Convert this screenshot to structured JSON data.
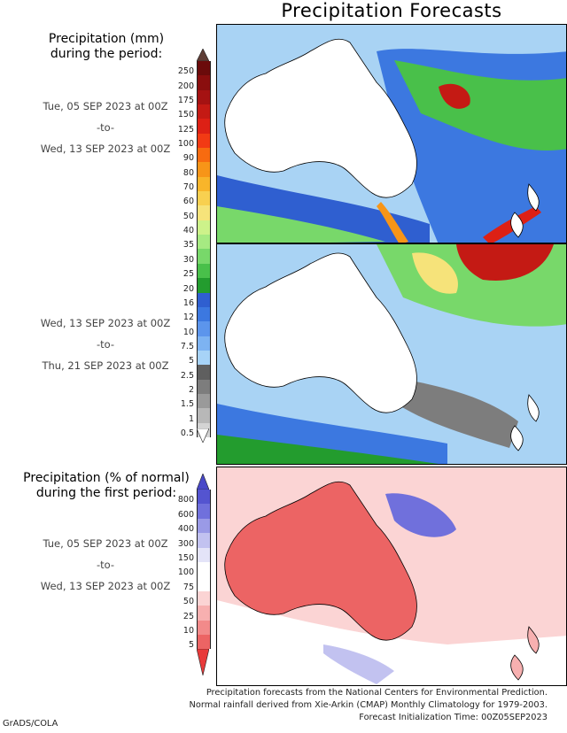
{
  "title": "Precipitation Forecasts",
  "amount_heading": [
    "Precipitation (mm)",
    "during the period:"
  ],
  "percent_heading": [
    "Precipitation (% of normal)",
    "during the first period:"
  ],
  "periods": [
    {
      "start": "Tue, 05 SEP 2023 at 00Z",
      "sep": "-to-",
      "end": "Wed, 13 SEP 2023 at 00Z"
    },
    {
      "start": "Wed, 13 SEP 2023 at 00Z",
      "sep": "-to-",
      "end": "Thu, 21 SEP 2023 at 00Z"
    },
    {
      "start": "Tue, 05 SEP 2023 at 00Z",
      "sep": "-to-",
      "end": "Wed, 13 SEP 2023 at 00Z"
    }
  ],
  "amount_legend": {
    "top_color": "#5e3d36",
    "bottom_color": "#ffffff",
    "levels": [
      {
        "label": "250",
        "color": "#6b0b0b"
      },
      {
        "label": "200",
        "color": "#8a0e0e"
      },
      {
        "label": "175",
        "color": "#a51212"
      },
      {
        "label": "150",
        "color": "#c41a14"
      },
      {
        "label": "125",
        "color": "#dd2015"
      },
      {
        "label": "100",
        "color": "#f23a14"
      },
      {
        "label": "90",
        "color": "#f76b10"
      },
      {
        "label": "80",
        "color": "#f79518"
      },
      {
        "label": "70",
        "color": "#f8b52a"
      },
      {
        "label": "60",
        "color": "#f8d050"
      },
      {
        "label": "50",
        "color": "#f6e37a"
      },
      {
        "label": "40",
        "color": "#cdf28a"
      },
      {
        "label": "35",
        "color": "#a6ea82"
      },
      {
        "label": "30",
        "color": "#78d86a"
      },
      {
        "label": "25",
        "color": "#49c04a"
      },
      {
        "label": "20",
        "color": "#239c2e"
      },
      {
        "label": "16",
        "color": "#2f5fd0"
      },
      {
        "label": "12",
        "color": "#3c78e0"
      },
      {
        "label": "10",
        "color": "#5c95ec"
      },
      {
        "label": "7.5",
        "color": "#7db3f2"
      },
      {
        "label": "5",
        "color": "#a7d3f7"
      },
      {
        "label": "2.5",
        "color": "#5f5f5f"
      },
      {
        "label": "2",
        "color": "#7d7d7d"
      },
      {
        "label": "1.5",
        "color": "#9a9a9a"
      },
      {
        "label": "1",
        "color": "#b8b8b8"
      },
      {
        "label": "0.5",
        "color": "#d4d4d4"
      }
    ]
  },
  "percent_legend": {
    "top_color": "#4848c8",
    "bottom_color": "#e83a3a",
    "levels": [
      {
        "label": "800",
        "color": "#5454d0"
      },
      {
        "label": "600",
        "color": "#7070dc"
      },
      {
        "label": "400",
        "color": "#9a9ae6"
      },
      {
        "label": "300",
        "color": "#c2c2f0"
      },
      {
        "label": "150",
        "color": "#e4e4f8"
      },
      {
        "label": "100",
        "color": "#ffffff"
      },
      {
        "label": "75",
        "color": "#ffffff"
      },
      {
        "label": "50",
        "color": "#fbd4d4"
      },
      {
        "label": "25",
        "color": "#f7b0b0"
      },
      {
        "label": "10",
        "color": "#f28a8a"
      },
      {
        "label": "5",
        "color": "#ec6464"
      }
    ]
  },
  "credits": [
    "Precipitation forecasts from the National Centers for Environmental Prediction.",
    "Normal rainfall derived from Xie-Arkin (CMAP) Monthly Climatology for 1979-2003.",
    "Forecast Initialization Time: 00Z05SEP2023"
  ],
  "software": "GrADS/COLA"
}
